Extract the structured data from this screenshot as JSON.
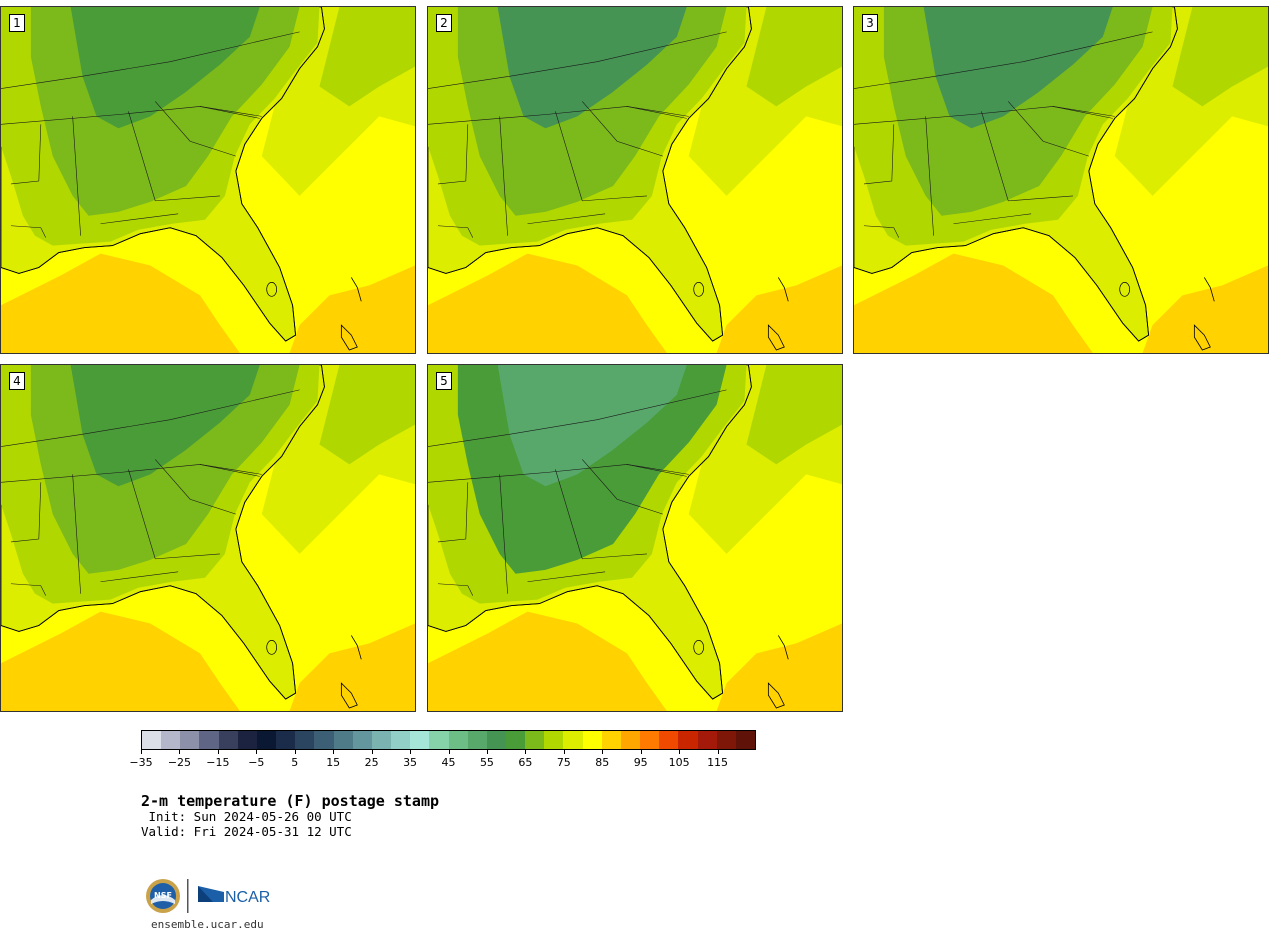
{
  "panels": [
    {
      "label": "1",
      "style": "warm"
    },
    {
      "label": "2",
      "style": "mixed"
    },
    {
      "label": "3",
      "style": "mixed"
    },
    {
      "label": "4",
      "style": "warm"
    },
    {
      "label": "5",
      "style": "cool"
    }
  ],
  "colorbar": {
    "colors": [
      "#dcdfe8",
      "#b4b7c9",
      "#8c90a8",
      "#5f6685",
      "#38405e",
      "#1b2340",
      "#0b1833",
      "#1a2c4a",
      "#2b4560",
      "#3d5f75",
      "#4f7a88",
      "#64979d",
      "#7ab3b0",
      "#92cfc6",
      "#a6e6d8",
      "#86d3a9",
      "#6dbd87",
      "#58a86b",
      "#459454",
      "#4a9c38",
      "#7cb91a",
      "#b0d800",
      "#dced00",
      "#ffff00",
      "#ffd200",
      "#ffa600",
      "#ff7a00",
      "#f04a00",
      "#c92600",
      "#a31a0a",
      "#7f1708",
      "#5e1208"
    ],
    "tick_labels": [
      "−35",
      "−25",
      "−15",
      "−5",
      "5",
      "15",
      "25",
      "35",
      "45",
      "55",
      "65",
      "75",
      "85",
      "95",
      "105",
      "115"
    ]
  },
  "title": "2-m temperature (F) postage stamp",
  "init": " Init: Sun 2024-05-26 00 UTC",
  "valid": "Valid: Fri 2024-05-31 12 UTC",
  "logos": {
    "nsf": "NSF",
    "ncar": "NCAR"
  },
  "url": "ensemble.ucar.edu"
}
